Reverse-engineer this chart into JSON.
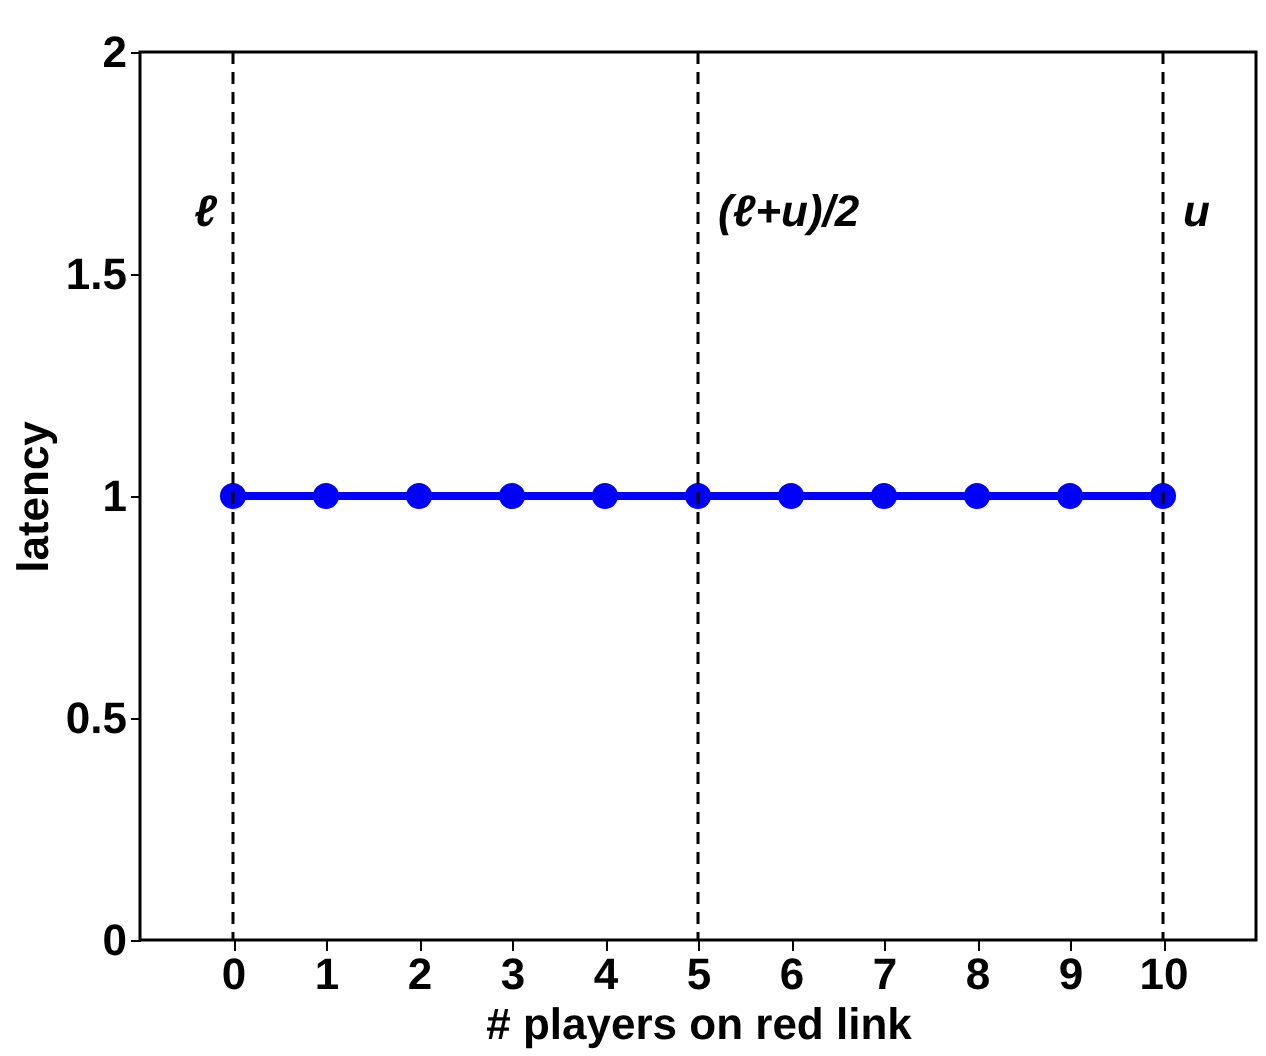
{
  "chart_data": {
    "type": "line",
    "xlabel": "# players on red link",
    "ylabel": "latency",
    "x": [
      0,
      1,
      2,
      3,
      4,
      5,
      6,
      7,
      8,
      9,
      10
    ],
    "series": [
      {
        "color": "#0000ff",
        "values": [
          1,
          1,
          1,
          1,
          1,
          1,
          1,
          1,
          1,
          1,
          1
        ]
      }
    ],
    "xlim": [
      -1,
      11
    ],
    "xticks": [
      0,
      1,
      2,
      3,
      4,
      5,
      6,
      7,
      8,
      9,
      10
    ],
    "ylim": [
      0,
      2
    ],
    "yticks": [
      0,
      0.5,
      1,
      1.5,
      2
    ],
    "ref_lines": [
      {
        "axis": "x",
        "value": 0,
        "label": "ℓ",
        "color": "#000000",
        "line_style": "dashed"
      },
      {
        "axis": "x",
        "value": 5,
        "label": "(ℓ+u)/2",
        "color": "#000000",
        "line_style": "dashed"
      },
      {
        "axis": "x",
        "value": 10,
        "label": "u",
        "color": "#000000",
        "line_style": "dashed"
      }
    ],
    "marker": "circle",
    "line_style": "solid",
    "grid": false
  }
}
